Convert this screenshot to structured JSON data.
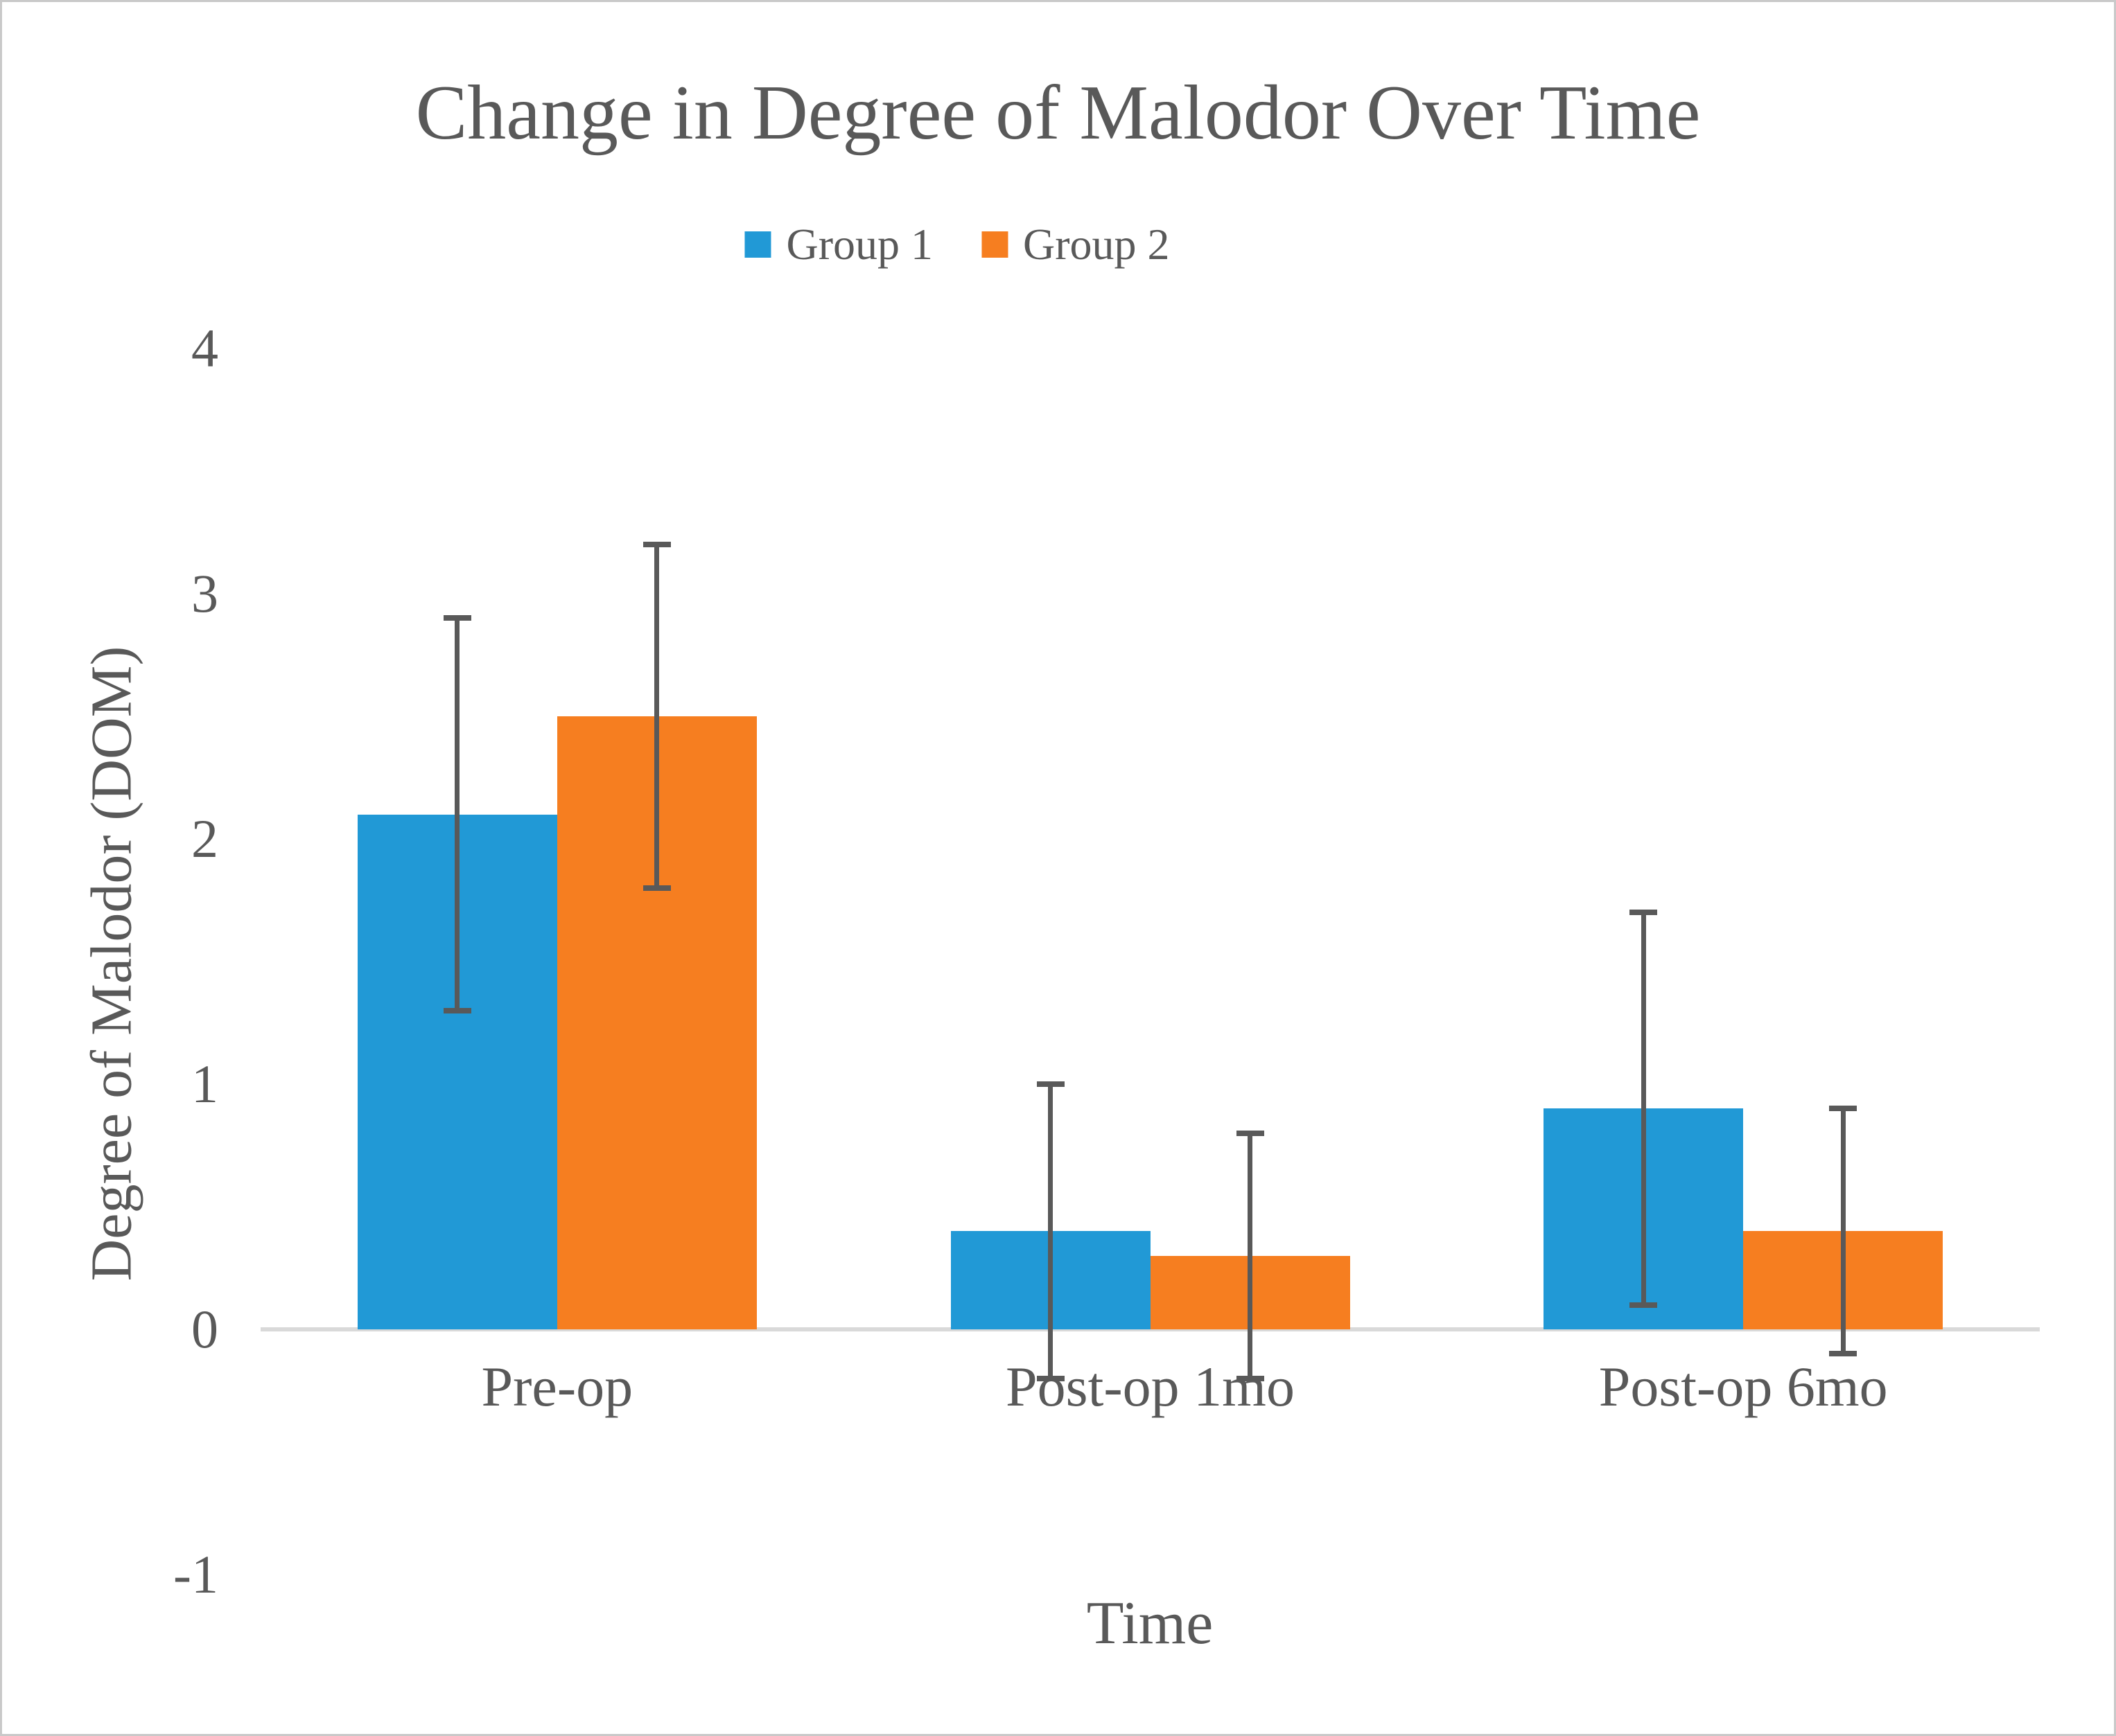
{
  "title": "Change in Degree of Malodor Over Time",
  "chart_data": {
    "type": "bar",
    "title": "Change in Degree of Malodor Over Time",
    "categories": [
      "Pre-op",
      "Post-op 1mo",
      "Post-op 6mo"
    ],
    "series": [
      {
        "name": "Group 1",
        "color": "#2199D6",
        "values": [
          2.1,
          0.4,
          0.9
        ],
        "error_plus": [
          0.8,
          0.6,
          0.8
        ],
        "error_minus": [
          0.8,
          0.6,
          0.8
        ]
      },
      {
        "name": "Group 2",
        "color": "#F67E20",
        "values": [
          2.5,
          0.3,
          0.4
        ],
        "error_plus": [
          0.7,
          0.5,
          0.5
        ],
        "error_minus": [
          0.7,
          0.5,
          0.5
        ]
      }
    ],
    "xlabel": "Time",
    "ylabel": "Degree of Malodor (DOM)",
    "ylim": [
      -1,
      4
    ],
    "yticks": [
      4,
      3,
      2,
      1,
      0,
      -1
    ],
    "grid": false,
    "legend_position": "top-center",
    "error_color": "#595959",
    "axis_line_color": "#D9D9D9",
    "text_color": "#595959"
  }
}
